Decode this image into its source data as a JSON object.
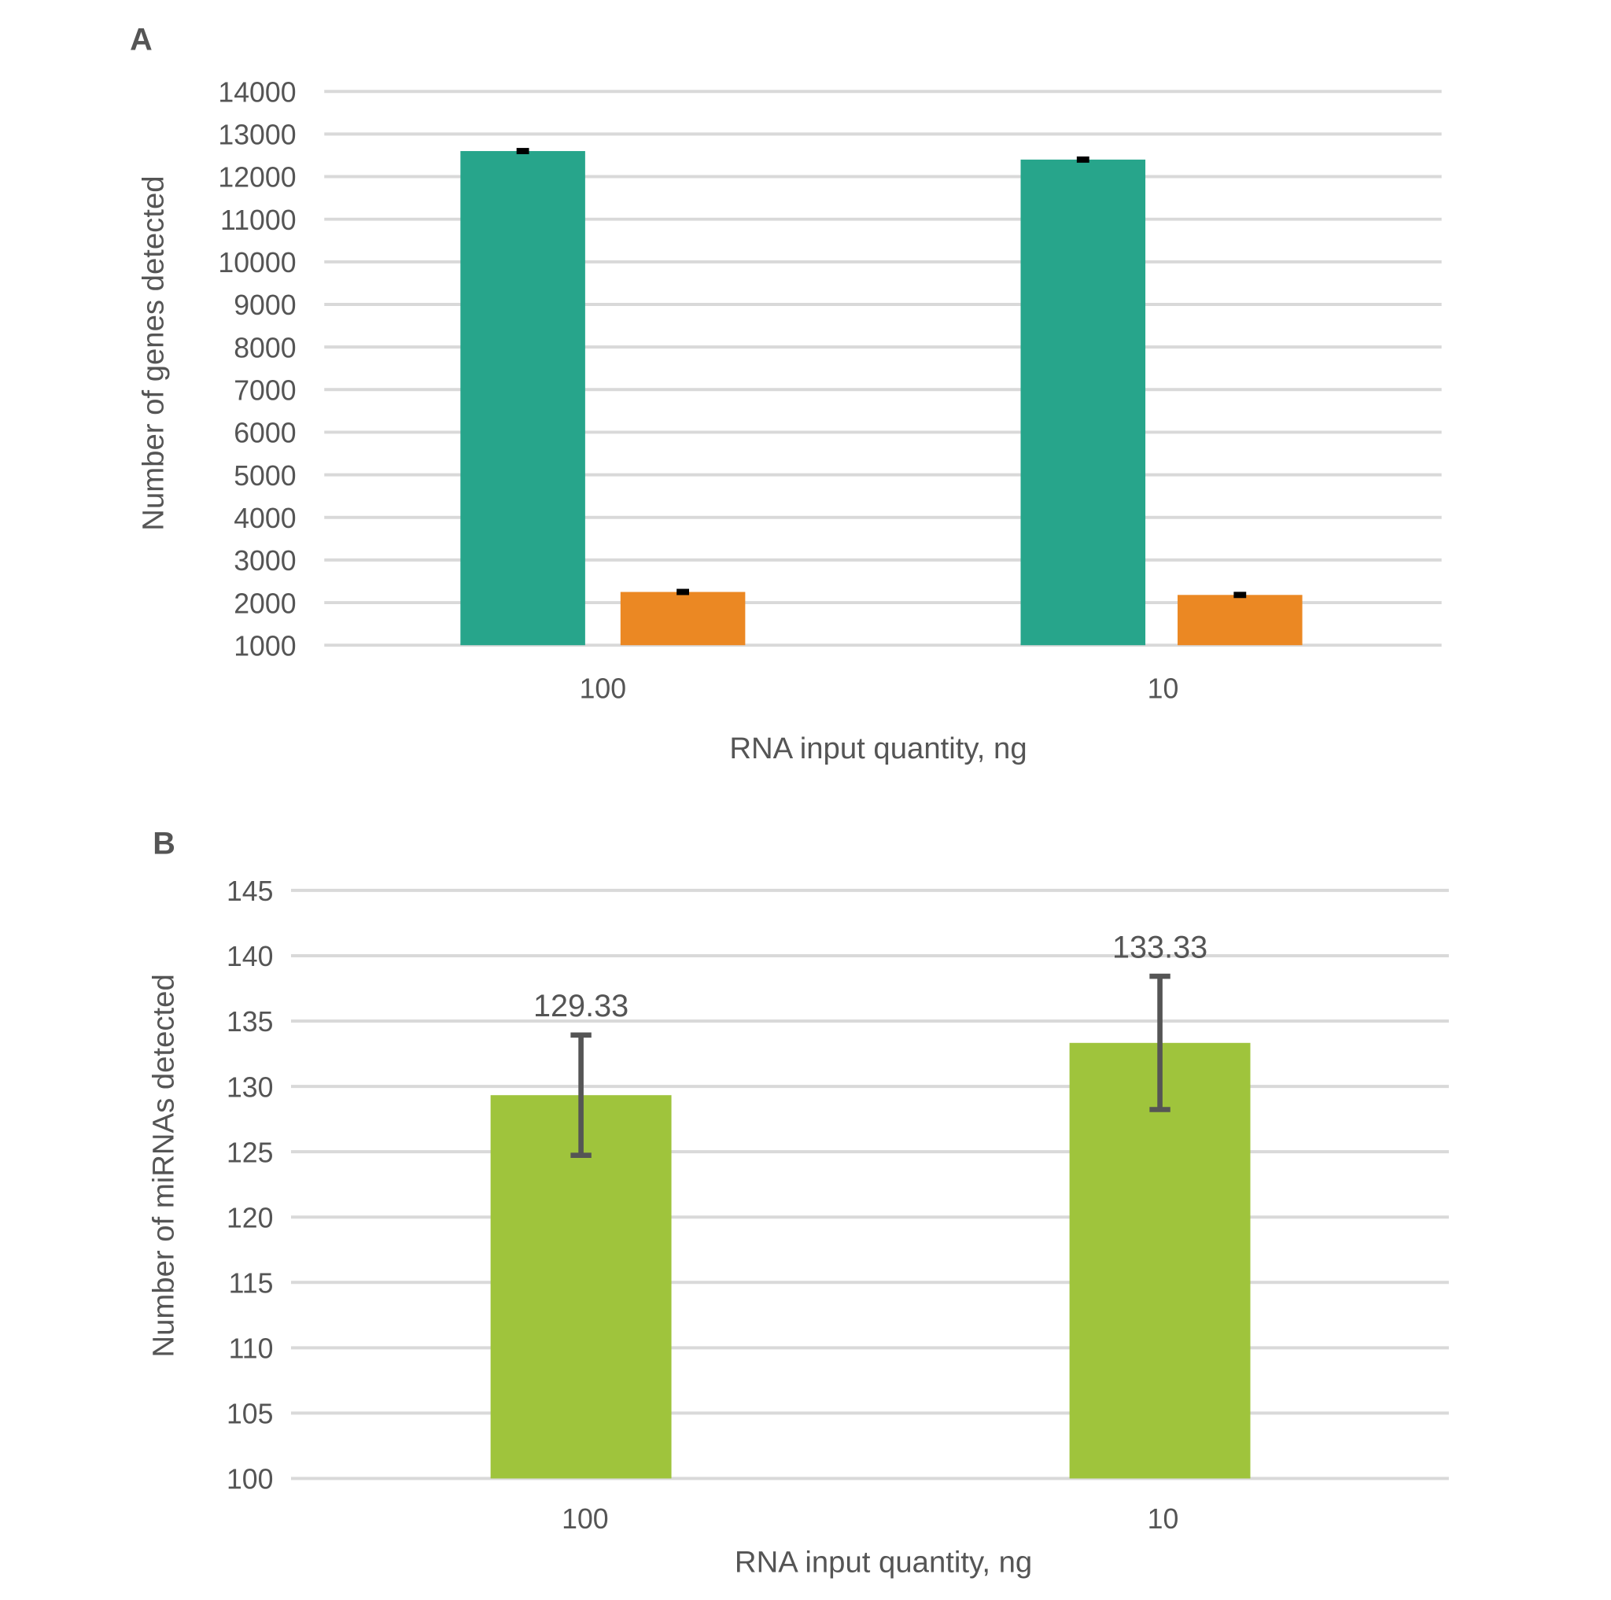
{
  "chart_data": [
    {
      "panel_label": "A",
      "type": "bar",
      "categories": [
        "100",
        "10"
      ],
      "series": [
        {
          "values": [
            12600,
            12400
          ],
          "errors": [
            30,
            30
          ],
          "color": "#27a58b"
        },
        {
          "values": [
            2250,
            2180
          ],
          "errors": [
            30,
            30
          ],
          "color": "#eb8823"
        }
      ],
      "xlabel": "RNA input quantity, ng",
      "ylabel": "Number of genes detected",
      "ylim": [
        1000,
        14000
      ],
      "yticks": [
        "1000",
        "2000",
        "3000",
        "4000",
        "5000",
        "6000",
        "7000",
        "8000",
        "9000",
        "10000",
        "11000",
        "12000",
        "13000",
        "14000"
      ],
      "grid": true,
      "error_bar_color": "#000000"
    },
    {
      "panel_label": "B",
      "type": "bar",
      "categories": [
        "100",
        "10"
      ],
      "series": [
        {
          "values": [
            129.33,
            133.33
          ],
          "errors": [
            4.6,
            5.1
          ],
          "data_labels": [
            "129.33",
            "133.33"
          ],
          "color": "#9fc43c"
        }
      ],
      "xlabel": "RNA input quantity, ng",
      "ylabel": "Number of miRNAs detected",
      "ylim": [
        100,
        145
      ],
      "yticks": [
        "100",
        "105",
        "110",
        "115",
        "120",
        "125",
        "130",
        "135",
        "140",
        "145"
      ],
      "grid": true,
      "error_bar_color": "#555555"
    }
  ]
}
